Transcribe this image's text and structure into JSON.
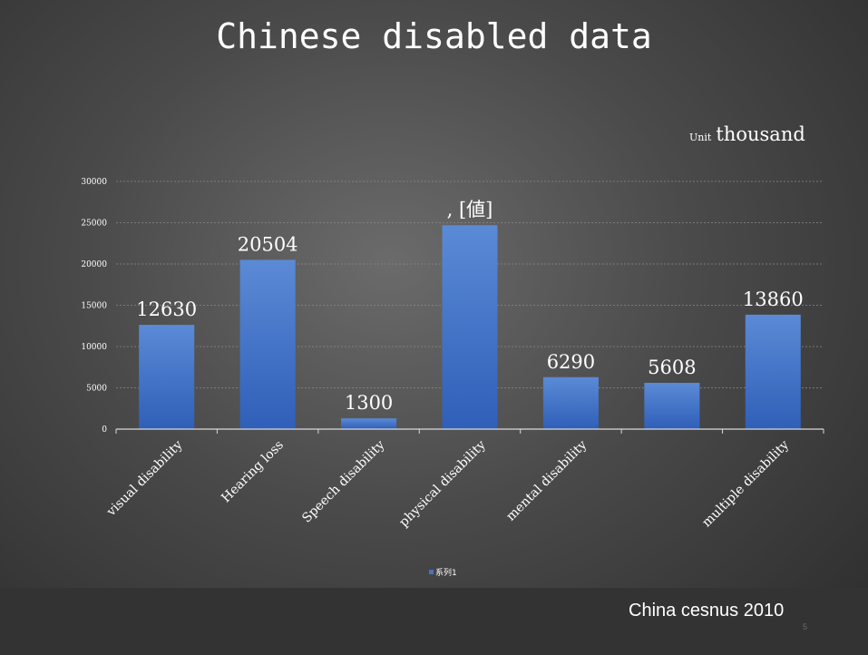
{
  "slide": {
    "title": "Chinese disabled data",
    "unit_prefix": "Unit",
    "unit_value": "thousand",
    "source": "China cesnus 2010",
    "page_number": "5"
  },
  "chart_data": {
    "type": "bar",
    "categories": [
      "visual disability",
      "Hearing loss",
      "Speech  disability",
      "physical disability",
      "mental disability",
      "",
      "multiple disability"
    ],
    "series": [
      {
        "name": "系列1",
        "values": [
          12630,
          20504,
          1300,
          24700,
          6290,
          5608,
          13860
        ],
        "data_labels": [
          "12630",
          "20504",
          "1300",
          ", [値]",
          "6290",
          "5608",
          "13860"
        ]
      }
    ],
    "ylim": [
      0,
      30000
    ],
    "yticks": [
      0,
      5000,
      10000,
      15000,
      20000,
      25000,
      30000
    ],
    "grid": true,
    "legend": "bottom",
    "colors": {
      "bar_top": "#5b8ad6",
      "bar_bottom": "#2f5fb8",
      "legend_marker": "#4472c4"
    }
  }
}
